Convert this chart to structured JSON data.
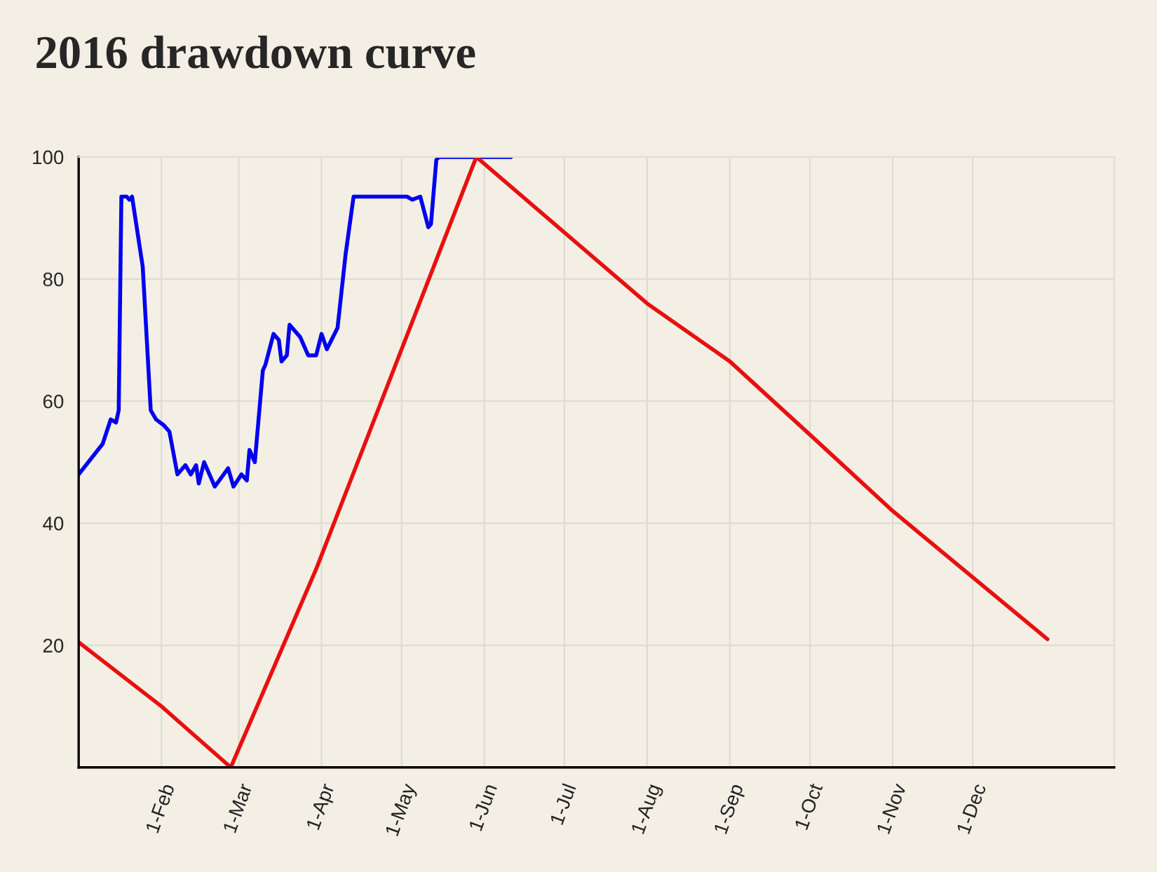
{
  "chart_data": {
    "type": "line",
    "title": "2016 drawdown curve",
    "series": [
      {
        "color": "#0000ee",
        "x": [
          "2016-01-01",
          "2016-01-10",
          "2016-01-13",
          "2016-01-15",
          "2016-01-16",
          "2016-01-17",
          "2016-01-19",
          "2016-01-20",
          "2016-01-21",
          "2016-01-25",
          "2016-01-28",
          "2016-01-30",
          "2016-02-02",
          "2016-02-04",
          "2016-02-07",
          "2016-02-10",
          "2016-02-12",
          "2016-02-14",
          "2016-02-15",
          "2016-02-17",
          "2016-02-21",
          "2016-02-26",
          "2016-02-28",
          "2016-03-02",
          "2016-03-04",
          "2016-03-05",
          "2016-03-07",
          "2016-03-10",
          "2016-03-11",
          "2016-03-14",
          "2016-03-16",
          "2016-03-17",
          "2016-03-19",
          "2016-03-20",
          "2016-03-24",
          "2016-03-27",
          "2016-03-30",
          "2016-04-01",
          "2016-04-03",
          "2016-04-07",
          "2016-04-10",
          "2016-04-13",
          "2016-05-03",
          "2016-05-05",
          "2016-05-08",
          "2016-05-11",
          "2016-05-12",
          "2016-05-14",
          "2016-05-15",
          "2016-06-11"
        ],
        "values": [
          48,
          53,
          57,
          56.5,
          58.5,
          93.5,
          93.5,
          93,
          93.5,
          82,
          58.5,
          57,
          56,
          55,
          48,
          49.5,
          48,
          49.5,
          46.5,
          50,
          46,
          49,
          46,
          48,
          47,
          52,
          50,
          65,
          66,
          71,
          70,
          66.5,
          67.5,
          72.5,
          70.5,
          67.5,
          67.5,
          71,
          68.5,
          72,
          84,
          93.5,
          93.5,
          93,
          93.5,
          88.5,
          89,
          99.5,
          100,
          100
        ]
      },
      {
        "color": "#e81010",
        "x": [
          "2016-01-01",
          "2016-02-01",
          "2016-02-27",
          "2016-03-30",
          "2016-05-29",
          "2016-08-01",
          "2016-09-01",
          "2016-10-01",
          "2016-11-01",
          "2016-12-29"
        ],
        "values": [
          20.5,
          10,
          0,
          32.5,
          100,
          76,
          66.5,
          54.5,
          42,
          21
        ]
      }
    ],
    "xlim": [
      "2016-01-01",
      "2017-01-23"
    ],
    "xticks": [
      {
        "value": "2016-02-01",
        "label": "1-Feb"
      },
      {
        "value": "2016-03-01",
        "label": "1-Mar"
      },
      {
        "value": "2016-04-01",
        "label": "1-Apr"
      },
      {
        "value": "2016-05-01",
        "label": "1-May"
      },
      {
        "value": "2016-06-01",
        "label": "1-Jun"
      },
      {
        "value": "2016-07-01",
        "label": "1-Jul"
      },
      {
        "value": "2016-08-01",
        "label": "1-Aug"
      },
      {
        "value": "2016-09-01",
        "label": "1-Sep"
      },
      {
        "value": "2016-10-01",
        "label": "1-Oct"
      },
      {
        "value": "2016-11-01",
        "label": "1-Nov"
      },
      {
        "value": "2016-12-01",
        "label": "1-Dec"
      }
    ],
    "ylim": [
      0,
      100
    ],
    "yticks": [
      20,
      40,
      60,
      80,
      100
    ],
    "grid": true,
    "legend": false,
    "line_style": "solid"
  }
}
